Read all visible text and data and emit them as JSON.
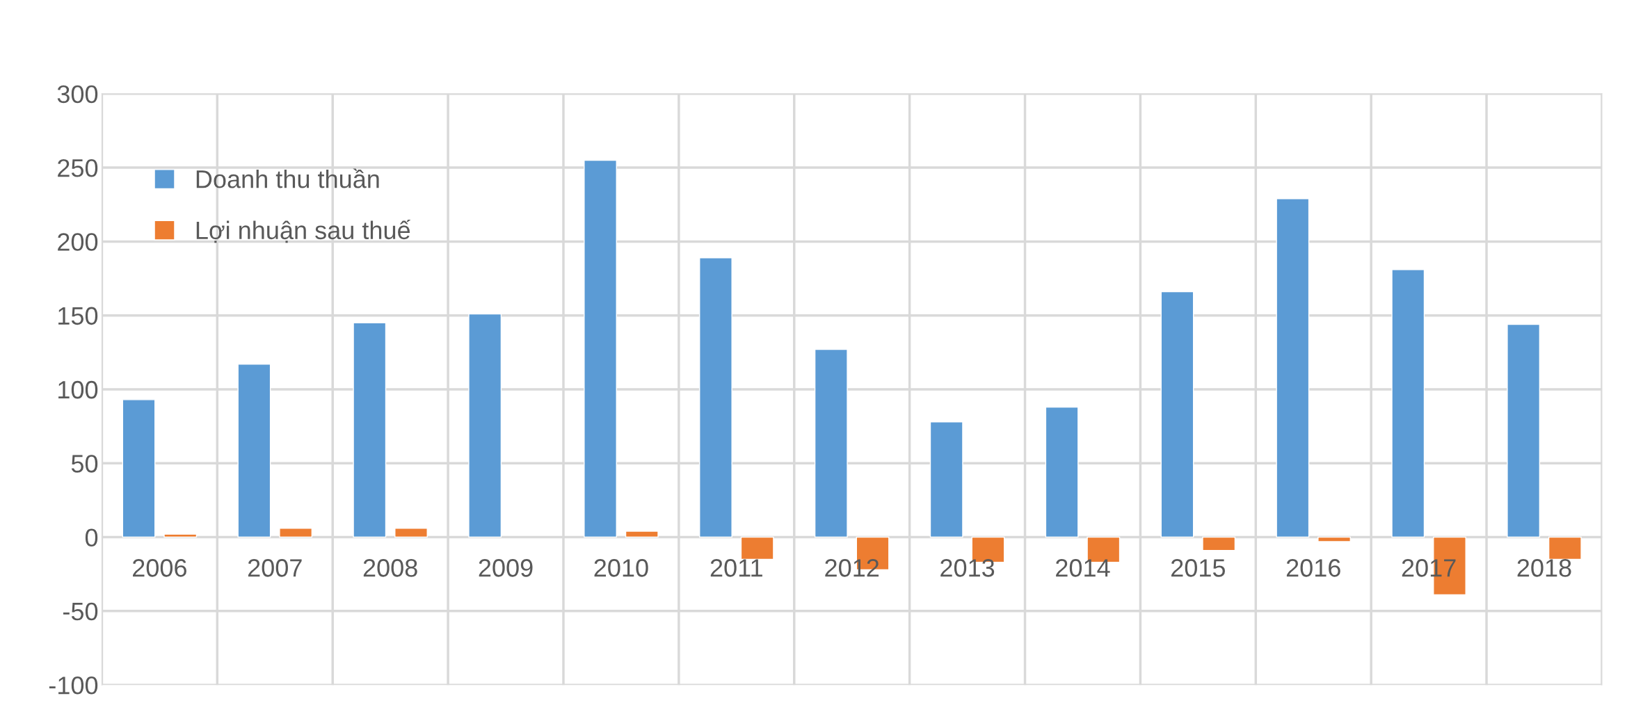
{
  "chart_data": {
    "type": "bar",
    "categories": [
      "2006",
      "2007",
      "2008",
      "2009",
      "2010",
      "2011",
      "2012",
      "2013",
      "2014",
      "2015",
      "2016",
      "2017",
      "2018"
    ],
    "series": [
      {
        "name": "Doanh thu thuần",
        "color": "#5b9bd5",
        "values": [
          93,
          117,
          145,
          151,
          255,
          189,
          127,
          78,
          88,
          166,
          229,
          181,
          144
        ]
      },
      {
        "name": "Lợi nhuận sau thuế",
        "color": "#ed7d31",
        "values": [
          2,
          6,
          6,
          null,
          4,
          -15,
          -22,
          -17,
          -17,
          -9,
          -3,
          -39,
          -15
        ]
      }
    ],
    "ylim": [
      -100,
      300
    ],
    "yticks": [
      -100,
      -50,
      0,
      50,
      100,
      150,
      200,
      250,
      300
    ],
    "grid": true,
    "legend": "top left"
  }
}
